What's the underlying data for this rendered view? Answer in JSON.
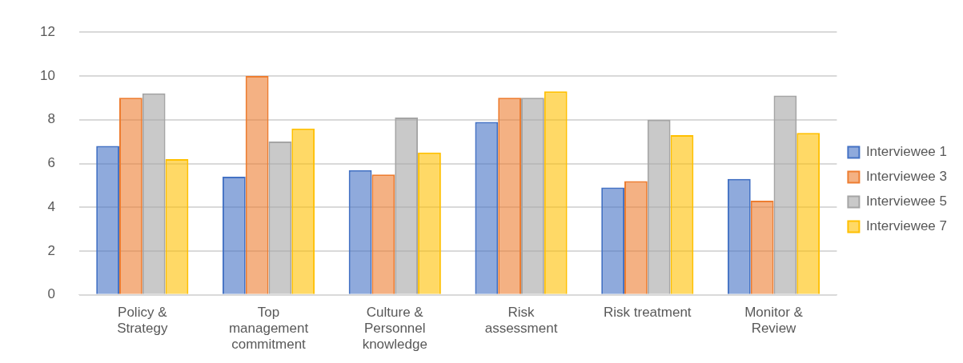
{
  "chart_data": {
    "type": "bar",
    "categories": [
      "Policy & Strategy",
      "Top management commitment",
      "Culture & Personnel knowledge",
      "Risk assessment",
      "Risk treatment",
      "Monitor & Review"
    ],
    "series": [
      {
        "name": "Interviewee 1",
        "color": "#4472c4",
        "values": [
          6.8,
          5.4,
          5.7,
          7.9,
          4.9,
          5.3
        ]
      },
      {
        "name": "Interviewee 3",
        "color": "#ed7d31",
        "values": [
          9,
          10,
          5.5,
          9,
          5.2,
          4.3
        ]
      },
      {
        "name": "Interviewee 5",
        "color": "#a5a5a5",
        "values": [
          9.2,
          7,
          8.1,
          9,
          8,
          9.1
        ]
      },
      {
        "name": "Interviewee 7",
        "color": "#ffc000",
        "values": [
          6.2,
          7.6,
          6.5,
          9.3,
          7.3,
          7.4
        ]
      }
    ],
    "ylim": [
      0,
      12
    ],
    "yticks": [
      0,
      2,
      4,
      6,
      8,
      10,
      12
    ],
    "grid": "y",
    "legend": "right"
  }
}
